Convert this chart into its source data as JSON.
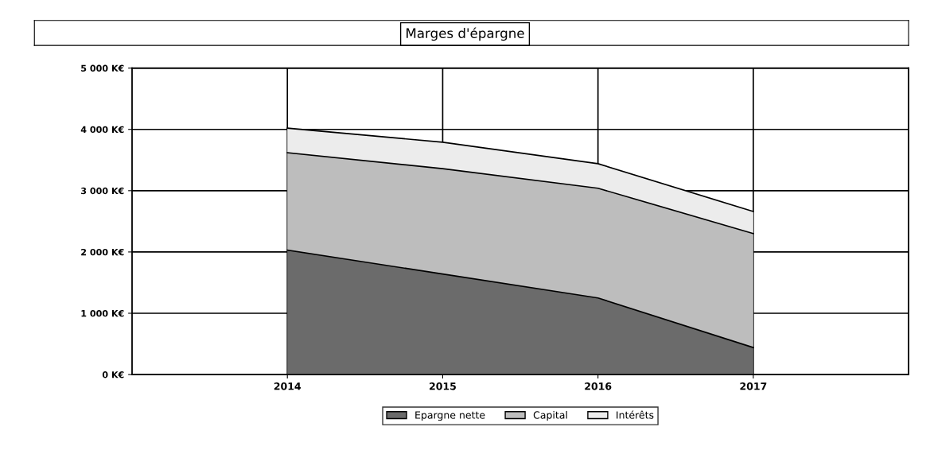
{
  "chart_data": {
    "type": "area",
    "title": "Marges d'épargne",
    "stacked": true,
    "x": [
      2014,
      2015,
      2016,
      2017
    ],
    "series": [
      {
        "name": "Epargne nette",
        "color": "#6b6b6b",
        "values": [
          2030,
          1640,
          1250,
          440
        ]
      },
      {
        "name": "Capital",
        "color": "#bdbdbd",
        "values": [
          1590,
          1720,
          1790,
          1860
        ]
      },
      {
        "name": "Intérêts",
        "color": "#ececec",
        "values": [
          400,
          430,
          400,
          360
        ]
      }
    ],
    "xlim": [
      2013,
      2018
    ],
    "xticks": [
      2014,
      2015,
      2016,
      2017
    ],
    "ylim": [
      0,
      5000
    ],
    "yticks": [
      {
        "value": 0,
        "label": "0 K€"
      },
      {
        "value": 1000,
        "label": "1 000 K€"
      },
      {
        "value": 2000,
        "label": "2 000 K€"
      },
      {
        "value": 3000,
        "label": "3 000 K€"
      },
      {
        "value": 4000,
        "label": "4 000 K€"
      },
      {
        "value": 5000,
        "label": "5 000 K€"
      }
    ],
    "grid": true,
    "legend": "bottom"
  }
}
